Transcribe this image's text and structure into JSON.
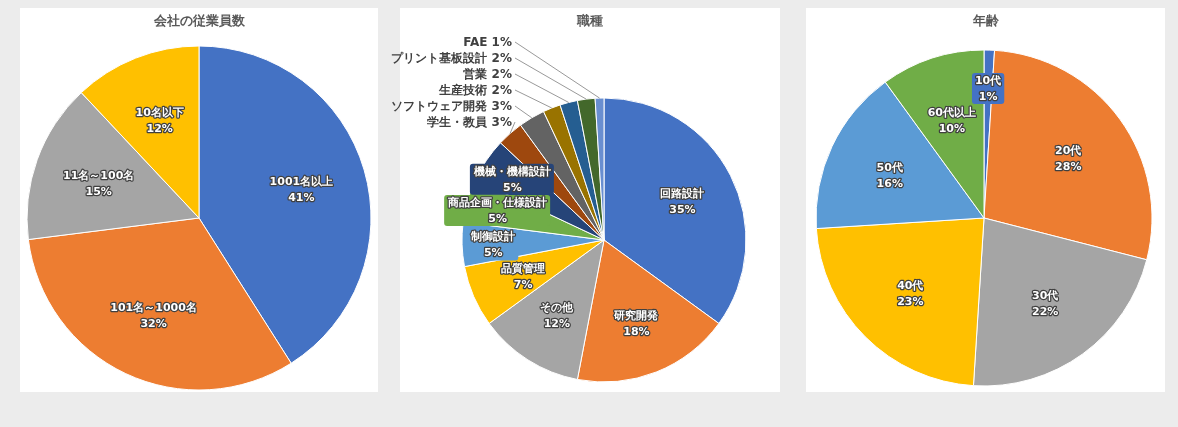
{
  "chart_data": [
    {
      "type": "pie",
      "title": "会社の従業員数",
      "categories": [
        "1001名以上",
        "101名～1000名",
        "11名～100名",
        "10名以下"
      ],
      "values": [
        41,
        32,
        15,
        12
      ],
      "colors": [
        "#4472c4",
        "#ed7d31",
        "#a5a5a5",
        "#ffc000"
      ],
      "value_labels": [
        "41%",
        "32%",
        "15%",
        "12%"
      ]
    },
    {
      "type": "pie",
      "title": "職種",
      "categories": [
        "回路設計",
        "研究開発",
        "その他",
        "品質管理",
        "制御設計",
        "商品企画・仕様設計",
        "機械・機構設計",
        "学生・教員",
        "ソフトウェア開発",
        "生産技術",
        "営業",
        "プリント基板設計",
        "FAE"
      ],
      "values": [
        35,
        18,
        12,
        7,
        5,
        5,
        5,
        3,
        3,
        2,
        2,
        2,
        1
      ],
      "colors": [
        "#4472c4",
        "#ed7d31",
        "#a5a5a5",
        "#ffc000",
        "#5b9bd5",
        "#70ad47",
        "#264478",
        "#9e480e",
        "#636363",
        "#997300",
        "#255e91",
        "#43682b",
        "#698ed0"
      ],
      "value_labels": [
        "35%",
        "18%",
        "12%",
        "7%",
        "5%",
        "5%",
        "5%",
        "3%",
        "3%",
        "2%",
        "2%",
        "2%",
        "1%"
      ]
    },
    {
      "type": "pie",
      "title": "年齢",
      "categories": [
        "10代",
        "20代",
        "30代",
        "40代",
        "50代",
        "60代以上"
      ],
      "values": [
        1,
        28,
        22,
        23,
        16,
        10
      ],
      "colors": [
        "#4472c4",
        "#ed7d31",
        "#a5a5a5",
        "#ffc000",
        "#5b9bd5",
        "#70ad47"
      ],
      "value_labels": [
        "1%",
        "28%",
        "22%",
        "23%",
        "16%",
        "10%"
      ]
    }
  ]
}
